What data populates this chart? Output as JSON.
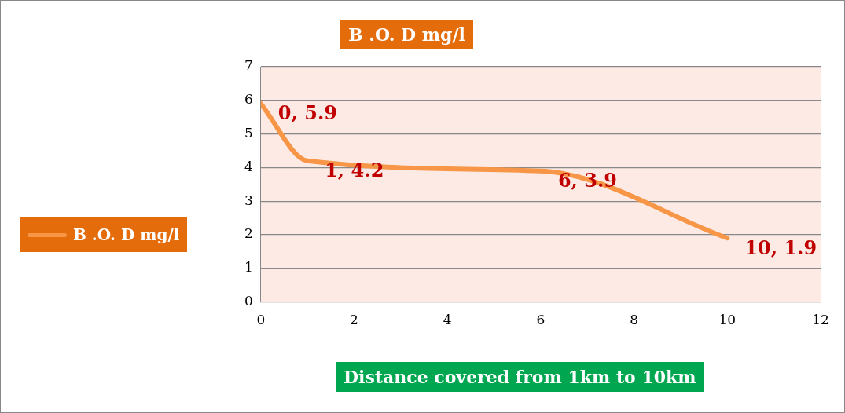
{
  "chart_data": {
    "type": "line",
    "title": "B .O. D mg/l",
    "xlabel": "Distance covered from 1km to 10km",
    "x": [
      0,
      1,
      6,
      10
    ],
    "series": [
      {
        "name": "B .O. D mg/l",
        "color": "#f79646",
        "values": [
          5.9,
          4.2,
          3.9,
          1.9
        ],
        "value_labels": [
          "0, 5.9",
          "1, 4.2",
          "6, 3.9",
          "10, 1.9"
        ]
      }
    ],
    "xlim": [
      0,
      12
    ],
    "xticks": [
      0,
      2,
      4,
      6,
      8,
      10,
      12
    ],
    "ylim": [
      0,
      7
    ],
    "yticks": [
      0,
      1,
      2,
      3,
      4,
      5,
      6,
      7
    ],
    "grid": "y",
    "legend": "left",
    "marker": "none",
    "line_style": "solid"
  }
}
